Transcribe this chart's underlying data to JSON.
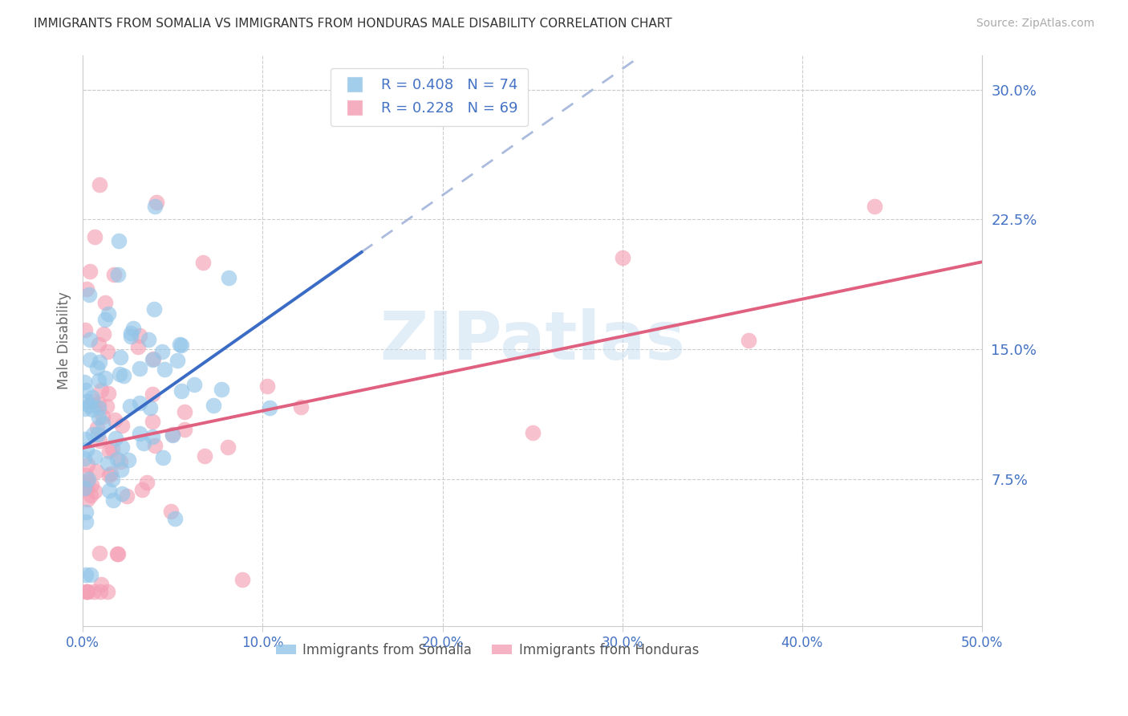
{
  "title": "IMMIGRANTS FROM SOMALIA VS IMMIGRANTS FROM HONDURAS MALE DISABILITY CORRELATION CHART",
  "source": "Source: ZipAtlas.com",
  "ylabel": "Male Disability",
  "xlim": [
    0.0,
    0.5
  ],
  "ylim": [
    -0.01,
    0.32
  ],
  "xticks": [
    0.0,
    0.1,
    0.2,
    0.3,
    0.4,
    0.5
  ],
  "xticklabels": [
    "0.0%",
    "10.0%",
    "20.0%",
    "30.0%",
    "40.0%",
    "50.0%"
  ],
  "yticks_right": [
    0.075,
    0.15,
    0.225,
    0.3
  ],
  "yticklabels_right": [
    "7.5%",
    "15.0%",
    "22.5%",
    "30.0%"
  ],
  "somalia_color": "#92C5E8",
  "honduras_color": "#F4A0B5",
  "somalia_R": 0.408,
  "somalia_N": 74,
  "honduras_R": 0.228,
  "honduras_N": 69,
  "legend_somalia_label": "Immigrants from Somalia",
  "legend_honduras_label": "Immigrants from Honduras",
  "title_color": "#333333",
  "axis_label_color": "#666666",
  "tick_color": "#4472C4",
  "grid_color": "#CCCCCC",
  "watermark": "ZIPatlas",
  "somalia_line_color": "#3B6CC5",
  "somalia_dash_color": "#AABBDD",
  "honduras_line_color": "#E06080",
  "somalia_line_intercept": 0.095,
  "somalia_line_slope": 0.72,
  "honduras_line_intercept": 0.09,
  "honduras_line_slope": 0.26
}
